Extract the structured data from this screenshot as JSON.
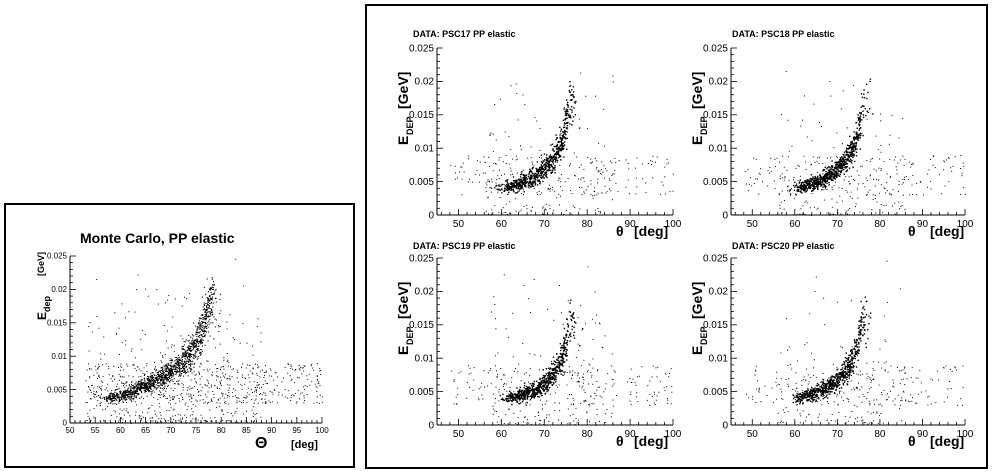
{
  "mc_panel": {
    "title": "Monte Carlo, PP elastic",
    "ylabel_main": "E",
    "ylabel_sub": "dep",
    "ylabel_unit": "[GeV]",
    "xlabel": "Θ",
    "xlabel_unit": "[deg]"
  },
  "data_panels": [
    {
      "title": "DATA: PSC17 PP elastic",
      "ylabel_main": "E",
      "ylabel_sub": "DEP",
      "ylabel_unit": "[GeV]",
      "xlabel": "θ",
      "xlabel_unit": "[deg]"
    },
    {
      "title": "DATA: PSC18 PP elastic",
      "ylabel_main": "E",
      "ylabel_sub": "DEP",
      "ylabel_unit": "[GeV]",
      "xlabel": "θ",
      "xlabel_unit": "[deg]"
    },
    {
      "title": "DATA: PSC19 PP elastic",
      "ylabel_main": "E",
      "ylabel_sub": "DEP",
      "ylabel_unit": "[GeV]",
      "xlabel": "θ",
      "xlabel_unit": "[deg]"
    },
    {
      "title": "DATA: PSC20 PP elastic",
      "ylabel_main": "E",
      "ylabel_sub": "DEP",
      "ylabel_unit": "[GeV]",
      "xlabel": "θ",
      "xlabel_unit": "[deg]"
    }
  ],
  "chart_data": [
    {
      "type": "scatter",
      "title": "Monte Carlo, PP elastic",
      "xlabel": "Θ [deg]",
      "ylabel": "E dep [GeV]",
      "xlim": [
        50,
        100
      ],
      "ylim": [
        0,
        0.025
      ],
      "xticks": [
        "50",
        "55",
        "60",
        "65",
        "70",
        "75",
        "80",
        "85",
        "90",
        "95",
        "100"
      ],
      "yticks": [
        "0",
        "0.005",
        "0.01",
        "0.015",
        "0.02",
        "0.025"
      ],
      "band": {
        "x": [
          57,
          60,
          63,
          66,
          69,
          72,
          75,
          77,
          78
        ],
        "y": [
          0.0037,
          0.0042,
          0.005,
          0.006,
          0.0073,
          0.009,
          0.0118,
          0.016,
          0.0188
        ]
      },
      "points": {
        "core": 1400,
        "spread": 900
      }
    },
    {
      "type": "scatter",
      "title": "DATA: PSC17 PP elastic",
      "xlabel": "θ [deg]",
      "ylabel": "E DEP [GeV]",
      "xlim": [
        45,
        100
      ],
      "ylim": [
        0,
        0.025
      ],
      "xticks": [
        "50",
        "60",
        "70",
        "80",
        "90",
        "100"
      ],
      "yticks": [
        "0",
        "0.005",
        "0.01",
        "0.015",
        "0.02",
        "0.025"
      ],
      "band": {
        "x": [
          60,
          63,
          66,
          69,
          72,
          74,
          75,
          76
        ],
        "y": [
          0.004,
          0.0046,
          0.0053,
          0.0065,
          0.0085,
          0.011,
          0.014,
          0.017
        ]
      },
      "points": {
        "core": 700,
        "spread": 350
      }
    },
    {
      "type": "scatter",
      "title": "DATA: PSC18 PP elastic",
      "xlabel": "θ [deg]",
      "ylabel": "E DEP [GeV]",
      "xlim": [
        45,
        100
      ],
      "ylim": [
        0,
        0.025
      ],
      "xticks": [
        "50",
        "60",
        "70",
        "80",
        "90",
        "100"
      ],
      "yticks": [
        "0",
        "0.005",
        "0.01",
        "0.015",
        "0.02",
        "0.025"
      ],
      "band": {
        "x": [
          60,
          63,
          66,
          69,
          72,
          74,
          75,
          76
        ],
        "y": [
          0.004,
          0.0045,
          0.0052,
          0.0064,
          0.0084,
          0.0108,
          0.0135,
          0.0165
        ]
      },
      "points": {
        "core": 700,
        "spread": 350
      }
    },
    {
      "type": "scatter",
      "title": "DATA: PSC19 PP elastic",
      "xlabel": "θ [deg]",
      "ylabel": "E DEP [GeV]",
      "xlim": [
        45,
        100
      ],
      "ylim": [
        0,
        0.025
      ],
      "xticks": [
        "50",
        "60",
        "70",
        "80",
        "90",
        "100"
      ],
      "yticks": [
        "0",
        "0.005",
        "0.01",
        "0.015",
        "0.02",
        "0.025"
      ],
      "band": {
        "x": [
          61,
          64,
          67,
          70,
          72,
          74,
          75,
          76
        ],
        "y": [
          0.004,
          0.0045,
          0.0052,
          0.0063,
          0.008,
          0.01,
          0.0125,
          0.0155
        ]
      },
      "points": {
        "core": 650,
        "spread": 380
      }
    },
    {
      "type": "scatter",
      "title": "DATA: PSC20 PP elastic",
      "xlabel": "θ [deg]",
      "ylabel": "E DEP [GeV]",
      "xlim": [
        45,
        100
      ],
      "ylim": [
        0,
        0.025
      ],
      "xticks": [
        "50",
        "60",
        "70",
        "80",
        "90",
        "100"
      ],
      "yticks": [
        "0",
        "0.005",
        "0.01",
        "0.015",
        "0.02",
        "0.025"
      ],
      "band": {
        "x": [
          60,
          63,
          66,
          69,
          72,
          74,
          75,
          76
        ],
        "y": [
          0.004,
          0.0045,
          0.0052,
          0.0063,
          0.0082,
          0.0105,
          0.0132,
          0.0162
        ]
      },
      "points": {
        "core": 650,
        "spread": 360
      }
    }
  ]
}
